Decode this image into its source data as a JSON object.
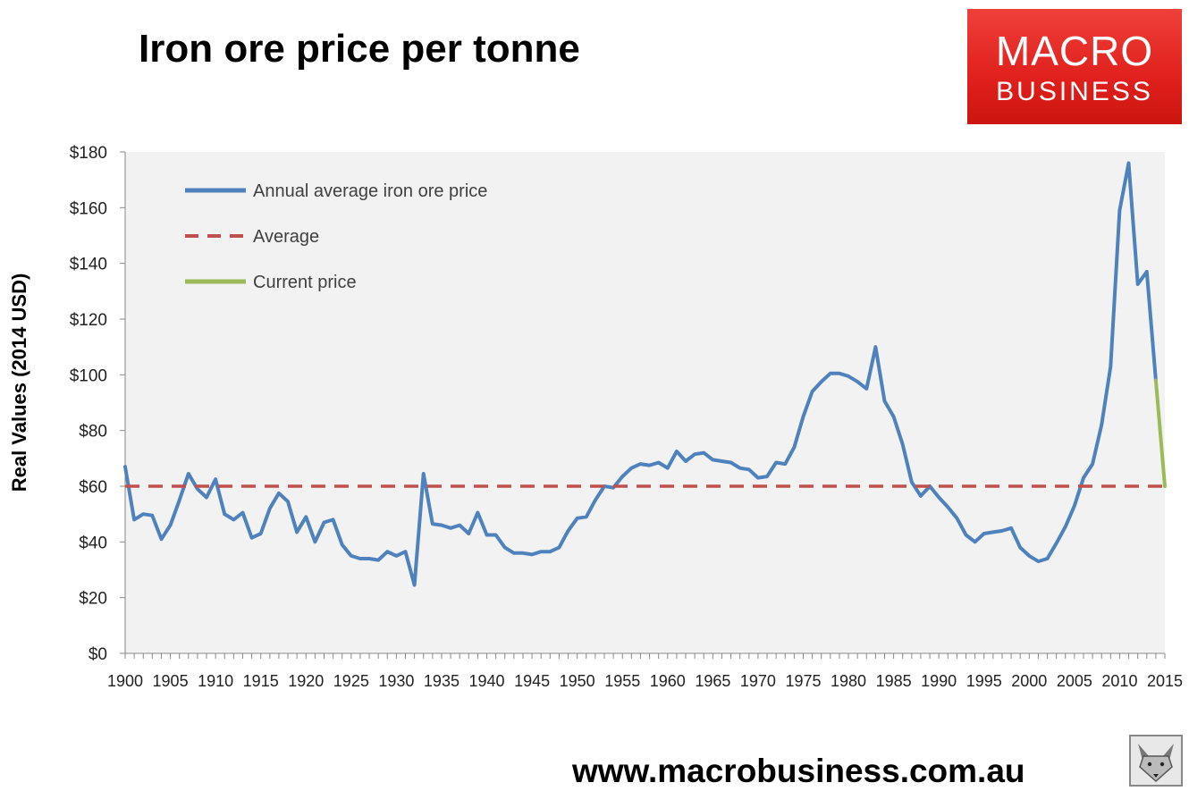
{
  "title": "Iron ore price per tonne",
  "logo": {
    "line1": "MACRO",
    "line2": "BUSINESS",
    "color": "#e0201c"
  },
  "footer": "www.macrobusiness.com.au",
  "chart_data": {
    "type": "line",
    "ylabel": "Real Values (2014 USD)",
    "ylim": [
      0,
      180
    ],
    "yticks": [
      "$0",
      "$20",
      "$40",
      "$60",
      "$80",
      "$100",
      "$120",
      "$140",
      "$160",
      "$180"
    ],
    "xlim": [
      1900,
      2015
    ],
    "xticks": [
      "1900",
      "1905",
      "1910",
      "1915",
      "1920",
      "1925",
      "1930",
      "1935",
      "1940",
      "1945",
      "1950",
      "1955",
      "1960",
      "1965",
      "1970",
      "1975",
      "1980",
      "1985",
      "1990",
      "1995",
      "2000",
      "2005",
      "2010",
      "2015"
    ],
    "grid": false,
    "legend_position": "top-left",
    "series": [
      {
        "name": "Annual average iron ore price",
        "color": "#4f81bd",
        "style": "solid",
        "x": [
          1900,
          1901,
          1902,
          1903,
          1904,
          1905,
          1906,
          1907,
          1908,
          1909,
          1910,
          1911,
          1912,
          1913,
          1914,
          1915,
          1916,
          1917,
          1918,
          1919,
          1920,
          1921,
          1922,
          1923,
          1924,
          1925,
          1926,
          1927,
          1928,
          1929,
          1930,
          1931,
          1932,
          1933,
          1934,
          1935,
          1936,
          1937,
          1938,
          1939,
          1940,
          1941,
          1942,
          1943,
          1944,
          1945,
          1946,
          1947,
          1948,
          1949,
          1950,
          1951,
          1952,
          1953,
          1954,
          1955,
          1956,
          1957,
          1958,
          1959,
          1960,
          1961,
          1962,
          1963,
          1964,
          1965,
          1966,
          1967,
          1968,
          1969,
          1970,
          1971,
          1972,
          1973,
          1974,
          1975,
          1976,
          1977,
          1978,
          1979,
          1980,
          1981,
          1982,
          1983,
          1984,
          1985,
          1986,
          1987,
          1988,
          1989,
          1990,
          1991,
          1992,
          1993,
          1994,
          1995,
          1996,
          1997,
          1998,
          1999,
          2000,
          2001,
          2002,
          2003,
          2004,
          2005,
          2006,
          2007,
          2008,
          2009,
          2010,
          2011,
          2012,
          2013,
          2014
        ],
        "values": [
          67,
          48,
          50,
          49.5,
          41,
          46,
          55,
          64.5,
          59,
          56,
          62.5,
          50,
          48,
          50.5,
          41.5,
          43,
          52,
          57.5,
          54.5,
          43.5,
          49,
          40,
          47,
          48,
          39,
          35,
          34,
          34,
          33.5,
          36.5,
          35,
          36.5,
          24.5,
          64.5,
          46.5,
          46,
          45,
          46,
          43,
          50.5,
          42.5,
          42.5,
          38,
          36,
          36,
          35.5,
          36.5,
          36.5,
          38,
          44,
          48.5,
          49,
          55,
          60,
          59.5,
          63.5,
          66.5,
          68,
          67.5,
          68.5,
          66.5,
          72.5,
          69,
          71.5,
          72,
          69.5,
          69,
          68.5,
          66.5,
          66,
          63,
          63.5,
          68.5,
          68,
          74,
          85,
          94,
          97.5,
          100.5,
          100.5,
          99.5,
          97.5,
          95,
          110,
          90.5,
          85,
          75,
          61.5,
          56.5,
          60,
          56,
          52.5,
          48.5,
          42.5,
          40,
          43,
          43.5,
          44,
          45,
          38,
          35,
          33,
          34,
          39.5,
          45.5,
          53,
          63,
          68,
          82,
          103,
          159,
          176,
          132.5,
          137,
          98
        ]
      },
      {
        "name": "Average",
        "color": "#c0504d",
        "style": "dashed",
        "x": [
          1900,
          2015
        ],
        "values": [
          60,
          60
        ]
      },
      {
        "name": "Current price",
        "color": "#9bbb59",
        "style": "solid",
        "x": [
          2014,
          2015
        ],
        "values": [
          98,
          60
        ]
      }
    ]
  }
}
